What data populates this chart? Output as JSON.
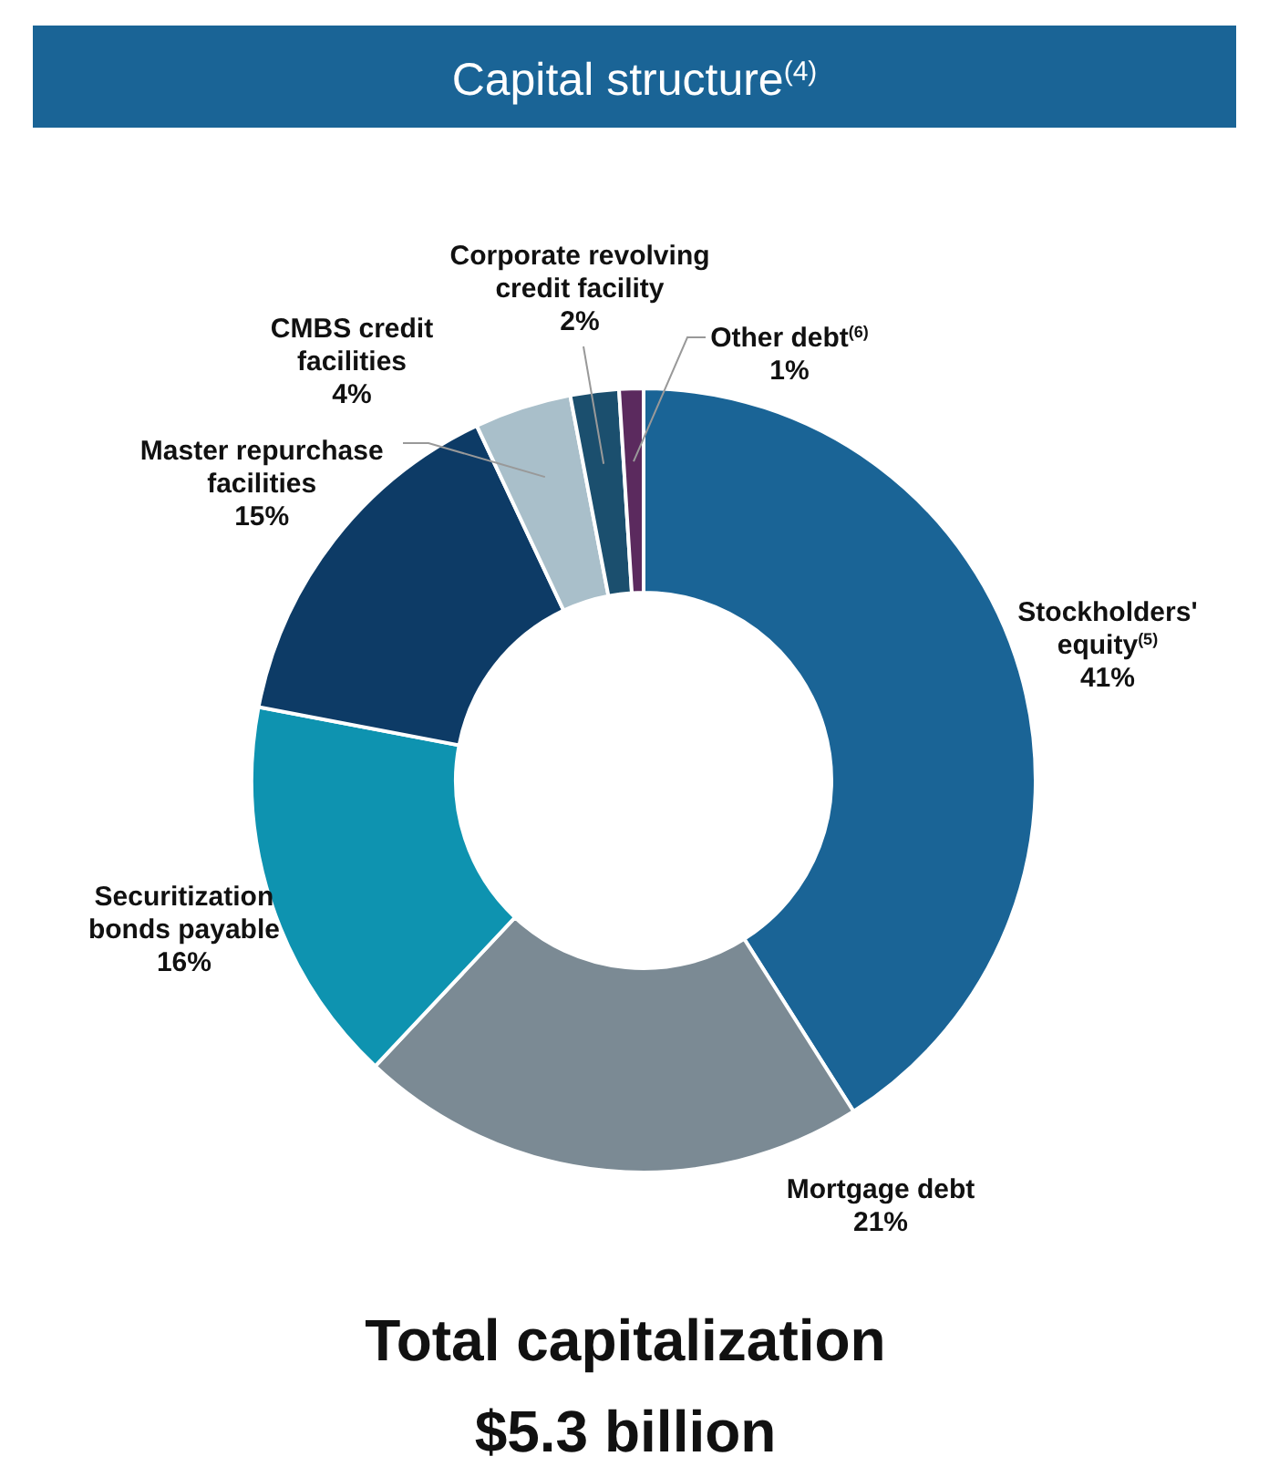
{
  "chart_data": {
    "type": "donut",
    "title": "Capital structure$^{(4)}$",
    "categories": [
      "Stockholders' equity$^{(5)}$",
      "Mortgage debt",
      "Securitization bonds payable",
      "Master repurchase facilities",
      "CMBS credit facilities",
      "Corporate revolving credit facility",
      "Other debt$^{(6)}$"
    ],
    "values": [
      41,
      21,
      16,
      15,
      4,
      2,
      1
    ],
    "colors": [
      "#1a6496",
      "#7b8a94",
      "#0e93b0",
      "#0d3b66",
      "#a9bfca",
      "#1b4f6e",
      "#5b2a5e"
    ],
    "value_labels": [
      "41%",
      "21%",
      "16%",
      "15%",
      "4%",
      "2%",
      "1%"
    ],
    "annotations": [
      "Total capitalization",
      "$5.3 billion"
    ]
  }
}
